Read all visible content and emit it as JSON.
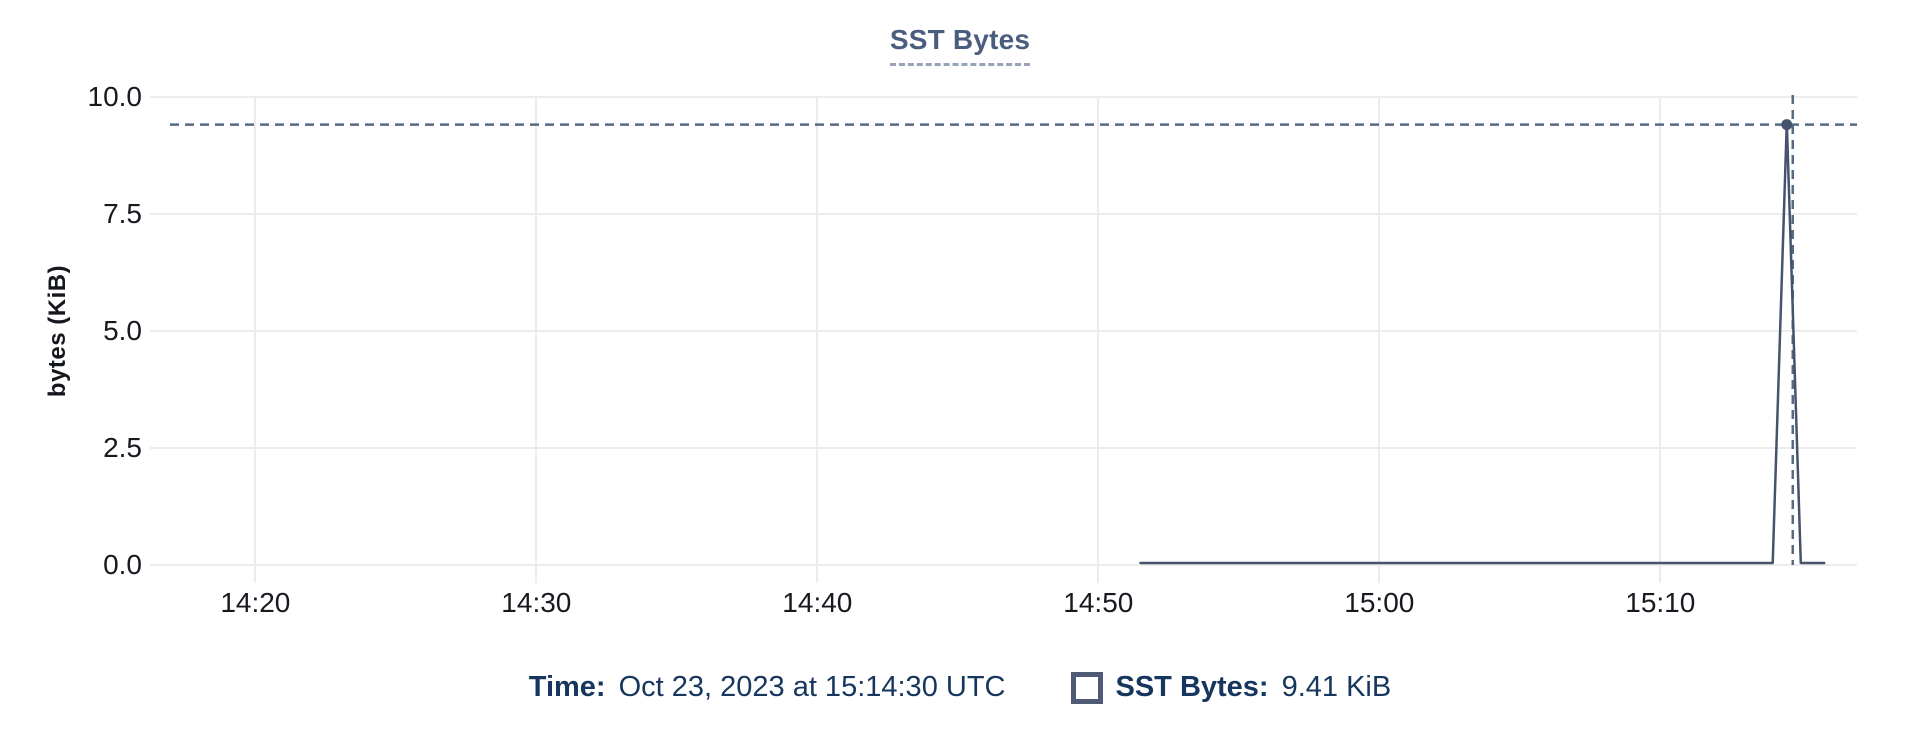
{
  "chart": {
    "title": "SST Bytes",
    "y_axis": {
      "label": "bytes (KiB)"
    }
  },
  "tooltip": {
    "time_label": "Time:",
    "time_value": "Oct 23, 2023 at 15:14:30 UTC",
    "series_label": "SST Bytes:",
    "series_value": "9.41 KiB"
  },
  "colors": {
    "line": "#45536c",
    "marker": "#45536c",
    "crosshair": "#566b83",
    "grid": "#ececec",
    "title": "#4b5d7e",
    "legend_text": "#16365e",
    "tick_text": "#16191f"
  },
  "chart_data": {
    "type": "line",
    "title": "SST Bytes",
    "xlabel": "",
    "ylabel": "bytes (KiB)",
    "ylim": [
      0,
      10
    ],
    "grid": true,
    "legend_position": "bottom",
    "y_ticks": [
      10,
      7.5,
      5,
      2.5,
      0
    ],
    "y_tick_labels": [
      "10.0",
      "7.5",
      "5.0",
      "2.5",
      "0.0"
    ],
    "x_domain": [
      "14:16:15",
      "15:17:00"
    ],
    "x_tick_times": [
      "14:20:00",
      "14:30:00",
      "14:40:00",
      "14:50:00",
      "15:00:00",
      "15:10:00"
    ],
    "x_tick_labels": [
      "14:20",
      "14:30",
      "14:40",
      "14:50",
      "15:00",
      "15:10"
    ],
    "series": [
      {
        "name": "SST Bytes",
        "color": "#45536c",
        "points": [
          [
            "14:51:30",
            0
          ],
          [
            "15:14:00",
            0
          ],
          [
            "15:14:30",
            9.41
          ],
          [
            "15:15:00",
            0
          ],
          [
            "15:15:50",
            0
          ]
        ]
      }
    ],
    "crosshair": {
      "time": "15:14:30",
      "value": 9.41,
      "value_label": "9.41 KiB"
    }
  }
}
